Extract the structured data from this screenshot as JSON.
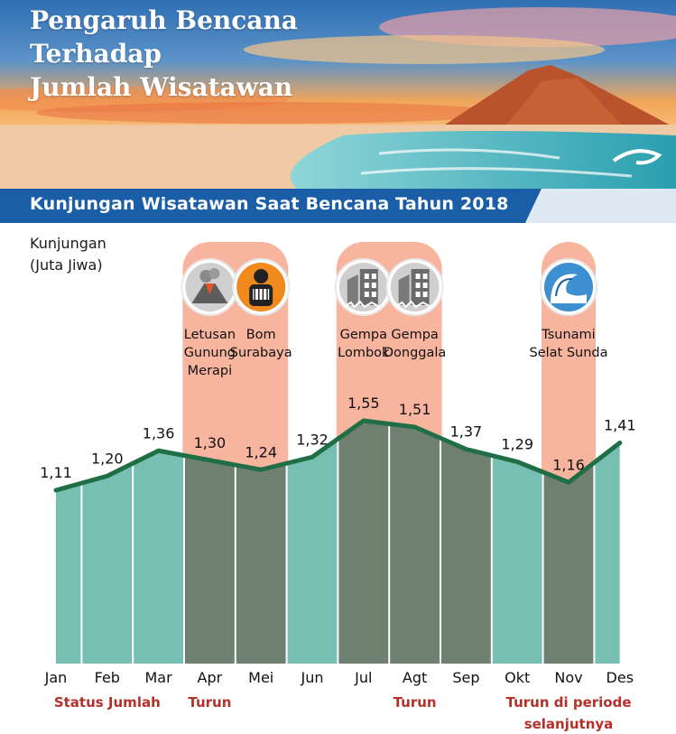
{
  "header": {
    "title_lines": [
      "Pengaruh Bencana",
      "Terhadap",
      "Jumlah Wisatawan"
    ],
    "subtitle": "Kunjungan Wisatawan Saat Bencana Tahun 2018"
  },
  "chart_data": {
    "type": "area",
    "title": "Kunjungan Wisatawan Saat Bencana Tahun 2018",
    "ylabel_lines": [
      "Kunjungan",
      "(Juta Jiwa)"
    ],
    "ylabel": "Kunjungan (Juta Jiwa)",
    "xlabel": "",
    "categories": [
      "Jan",
      "Feb",
      "Mar",
      "Apr",
      "Mei",
      "Jun",
      "Jul",
      "Agt",
      "Sep",
      "Okt",
      "Nov",
      "Des"
    ],
    "value_labels": [
      "1,11",
      "1,20",
      "1,36",
      "1,30",
      "1,24",
      "1,32",
      "1,55",
      "1,51",
      "1,37",
      "1,29",
      "1,16",
      "1,41"
    ],
    "series": [
      {
        "values": [
          1.11,
          1.2,
          1.36,
          1.3,
          1.24,
          1.32,
          1.55,
          1.51,
          1.37,
          1.29,
          1.16,
          1.41
        ]
      }
    ],
    "grid": false,
    "decline_months": [
      "Apr",
      "Mei",
      "Jul",
      "Agt",
      "Sep",
      "Nov"
    ],
    "events": [
      {
        "label_lines": [
          "Letusan",
          "Gunung",
          "Merapi"
        ],
        "month": "Apr",
        "icon": "volcano-icon"
      },
      {
        "label_lines": [
          "Bom",
          "Surabaya"
        ],
        "month": "Mei",
        "icon": "bomb-person-icon"
      },
      {
        "label_lines": [
          "Gempa",
          "Lombok"
        ],
        "month": "Jul",
        "icon": "earthquake-building-icon"
      },
      {
        "label_lines": [
          "Gempa",
          "Donggala"
        ],
        "month": "Agt",
        "icon": "earthquake-building-icon"
      },
      {
        "label_lines": [
          "Tsunami",
          "Selat Sunda"
        ],
        "month": "Nov",
        "icon": "tsunami-wave-icon"
      }
    ],
    "status_labels": [
      {
        "lines": [
          "Status Jumlah"
        ],
        "month": "Feb"
      },
      {
        "lines": [
          "Turun"
        ],
        "month": "Apr"
      },
      {
        "lines": [
          "Turun"
        ],
        "month": "Agt"
      },
      {
        "lines": [
          "Turun di periode",
          "selanjutnya"
        ],
        "month": "Nov"
      }
    ],
    "colors": {
      "line": "#1f6e46",
      "area_normal": "#78bfb3",
      "area_decline": "#6f8070",
      "highlight_panel": "#f7b49f",
      "status_text": "#b5302a"
    }
  }
}
